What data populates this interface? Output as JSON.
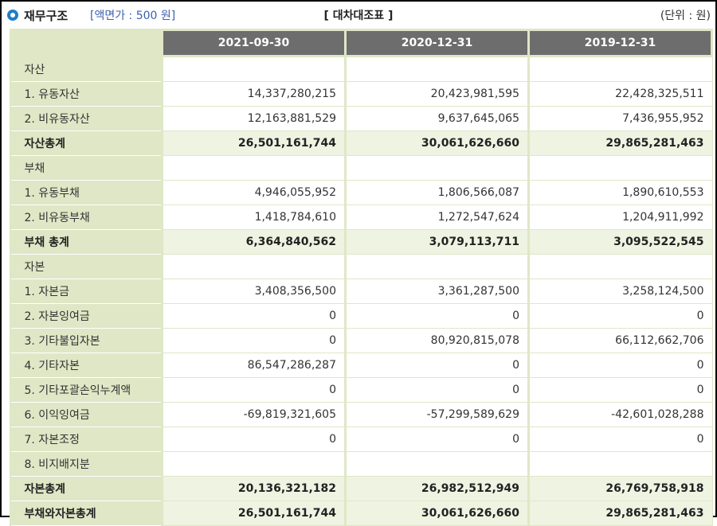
{
  "header": {
    "title": "재무구조",
    "par_value": "[액면가 : 500 원]",
    "statement_title": "[ 대차대조표 ]",
    "unit": "(단위 : 원)"
  },
  "columns": [
    "2021-09-30",
    "2020-12-31",
    "2019-12-31"
  ],
  "rows": [
    {
      "label": "자산",
      "values": [
        "",
        "",
        ""
      ],
      "kind": "sec"
    },
    {
      "label": "1. 유동자산",
      "values": [
        "14,337,280,215",
        "20,423,981,595",
        "22,428,325,511"
      ],
      "kind": "item"
    },
    {
      "label": "2. 비유동자산",
      "values": [
        "12,163,881,529",
        "9,637,645,065",
        "7,436,955,952"
      ],
      "kind": "item"
    },
    {
      "label": "자산총계",
      "values": [
        "26,501,161,744",
        "30,061,626,660",
        "29,865,281,463"
      ],
      "kind": "sub"
    },
    {
      "label": "부채",
      "values": [
        "",
        "",
        ""
      ],
      "kind": "sec"
    },
    {
      "label": "1. 유동부채",
      "values": [
        "4,946,055,952",
        "1,806,566,087",
        "1,890,610,553"
      ],
      "kind": "item"
    },
    {
      "label": "2. 비유동부채",
      "values": [
        "1,418,784,610",
        "1,272,547,624",
        "1,204,911,992"
      ],
      "kind": "item"
    },
    {
      "label": "부채 총계",
      "values": [
        "6,364,840,562",
        "3,079,113,711",
        "3,095,522,545"
      ],
      "kind": "sub"
    },
    {
      "label": "자본",
      "values": [
        "",
        "",
        ""
      ],
      "kind": "sec"
    },
    {
      "label": "1. 자본금",
      "values": [
        "3,408,356,500",
        "3,361,287,500",
        "3,258,124,500"
      ],
      "kind": "item"
    },
    {
      "label": "2. 자본잉여금",
      "values": [
        "0",
        "0",
        "0"
      ],
      "kind": "item"
    },
    {
      "label": "3. 기타불입자본",
      "values": [
        "0",
        "80,920,815,078",
        "66,112,662,706"
      ],
      "kind": "item"
    },
    {
      "label": "4. 기타자본",
      "values": [
        "86,547,286,287",
        "0",
        "0"
      ],
      "kind": "item"
    },
    {
      "label": "5. 기타포괄손익누계액",
      "values": [
        "0",
        "0",
        "0"
      ],
      "kind": "item"
    },
    {
      "label": "6. 이익잉여금",
      "values": [
        "-69,819,321,605",
        "-57,299,589,629",
        "-42,601,028,288"
      ],
      "kind": "item"
    },
    {
      "label": "7. 자본조정",
      "values": [
        "0",
        "0",
        "0"
      ],
      "kind": "item"
    },
    {
      "label": "8. 비지배지분",
      "values": [
        "",
        "",
        ""
      ],
      "kind": "item"
    },
    {
      "label": "자본총계",
      "values": [
        "20,136,321,182",
        "26,982,512,949",
        "26,769,758,918"
      ],
      "kind": "sub"
    },
    {
      "label": "부채와자본총계",
      "values": [
        "26,501,161,744",
        "30,061,626,660",
        "29,865,281,463"
      ],
      "kind": "sub"
    }
  ]
}
